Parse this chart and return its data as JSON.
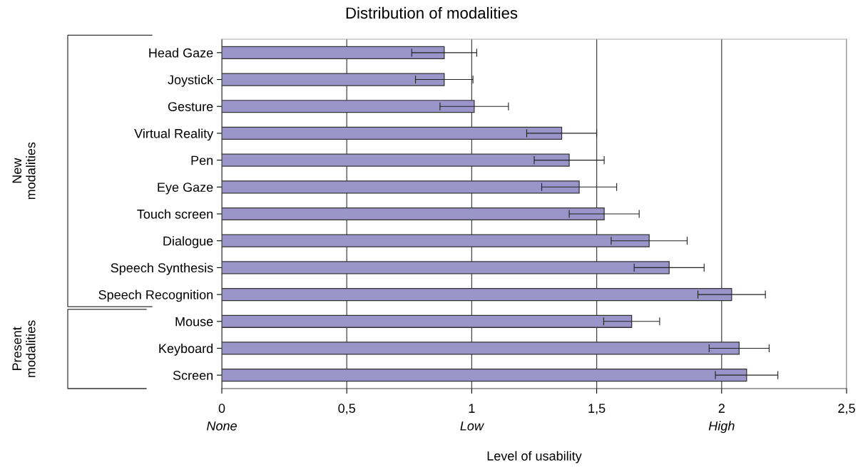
{
  "chart_data": {
    "type": "bar",
    "orientation": "horizontal",
    "title": "Distribution of modalities",
    "xlabel": "Level of usability",
    "categories": [
      "Head Gaze",
      "Joystick",
      "Gesture",
      "Virtual Reality",
      "Pen",
      "Eye Gaze",
      "Touch screen",
      "Dialogue",
      "Speech Synthesis",
      "Speech Recognition",
      "Mouse",
      "Keyboard",
      "Screen"
    ],
    "values": [
      0.89,
      0.89,
      1.01,
      1.36,
      1.39,
      1.43,
      1.53,
      1.71,
      1.79,
      2.04,
      1.64,
      2.07,
      2.1
    ],
    "errors": [
      0.13,
      0.115,
      0.137,
      0.14,
      0.14,
      0.15,
      0.14,
      0.152,
      0.14,
      0.135,
      0.112,
      0.12,
      0.125
    ],
    "color": "#9b94c8",
    "xlim": [
      0,
      2.5
    ],
    "xticks": [
      {
        "value": 0,
        "label": "0"
      },
      {
        "value": 0.5,
        "label": "0,5"
      },
      {
        "value": 1,
        "label": "1"
      },
      {
        "value": 1.5,
        "label": "1,5"
      },
      {
        "value": 2,
        "label": "2"
      },
      {
        "value": 2.5,
        "label": "2,5"
      }
    ],
    "grid": "x",
    "annotations": [
      "None",
      "Low",
      "High",
      "New\nmodalities",
      "Present\nmodalities"
    ]
  }
}
